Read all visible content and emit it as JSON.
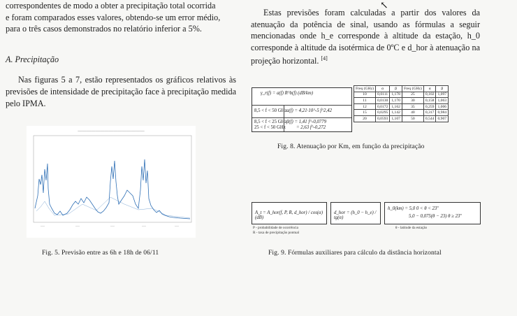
{
  "left_column": {
    "line1": "correspondentes de modo a obter a precipitação total ocorrida",
    "line2": "e foram comparados esses valores, obtendo-se um error médio,",
    "line3": "para o três casos demonstrados no relatório inferior a 5%.",
    "section_heading": "A.  Precipitação",
    "para2": "Nas figuras 5 a 7, estão representados os gráficos relativos às previsões de intensidade de precipitação face à precipitação medida pelo IPMA."
  },
  "right_column": {
    "para": "Estas previsões foram calculadas a partir dos valores da atenuação da potência de sinal, usando as fórmulas a seguir mencionadas onde h_e corresponde à altitude da estação, h_0 corresponde à altitude da isotérmica de 0ºC e d_hor à atenuação na projeção horizontal.",
    "ref": "[4]"
  },
  "fig5": {
    "caption": "Fig. 5.  Previsão entre as 6h e 18h de 06/11"
  },
  "fig8": {
    "caption": "Fig. 8.  Atenuação por Km, em função da precipitação",
    "formula_header": "γ_r(f) = a(f) R^b(f)     (dB/km)",
    "row1_range": "8,5 < f < 50 GHz",
    "row1_formula": "a(f) = 4,21·10^-5 f^2,42",
    "row2_range1": "8,5 < f < 25 GHz",
    "row2_range2": "25 < f < 50 GHz",
    "row2_formula1": "β(f) = 1,41 f^-0,0779",
    "row2_formula2": "= 2,63 f^-0,272",
    "table_headers": [
      "Freq (GHz)",
      "α",
      "β",
      "Freq (GHz)",
      "α",
      "β"
    ],
    "table_rows": [
      [
        "10",
        "0,0111",
        "1,178",
        "25",
        "0,102",
        "1,097"
      ],
      [
        "11",
        "0,0130",
        "1,170",
        "30",
        "0,158",
        "1,063"
      ],
      [
        "12",
        "0,0172",
        "1,162",
        "35",
        "0,259",
        "1,006"
      ],
      [
        "15",
        "0,0295",
        "1,142",
        "40",
        "0,317",
        "0,984"
      ],
      [
        "20",
        "0,0593",
        "1,107",
        "50",
        "0,544",
        "0,907"
      ]
    ]
  },
  "fig9": {
    "caption": "Fig. 9.  Fórmulas auxiliares para cálculo da distância horizontal",
    "formula1": "A_t = A_hor(f, P, R, d_hor) / cos(α)     (dB)",
    "formula2": "d_hor = (h_0 − h_e) / tg(α)",
    "formula3_a": "h_0(km) = 5,0                      0 < θ < 23º",
    "formula3_b": "5,0 − 0,075(θ − 23)     θ ≥ 23º",
    "note1": "P - probabilidade de ocorrência",
    "note2": "R - taxa de precipitação pontual",
    "note3": "θ - latitude da estação"
  },
  "colors": {
    "line": "#2e6fb5",
    "text": "#1d1d1d"
  }
}
